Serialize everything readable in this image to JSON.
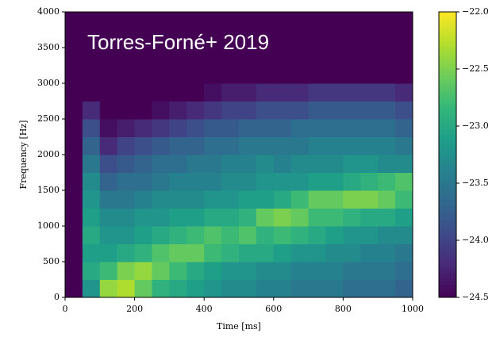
{
  "chart_data": {
    "type": "heatmap",
    "annotation": "Torres-Forné+ 2019",
    "xlabel": "Time [ms]",
    "ylabel": "Frequency [Hz]",
    "xlim": [
      0,
      1000
    ],
    "ylim": [
      0,
      4000
    ],
    "xticks": [
      0,
      200,
      400,
      600,
      800,
      1000
    ],
    "yticks": [
      0,
      500,
      1000,
      1500,
      2000,
      2500,
      3000,
      3500,
      4000
    ],
    "clim": [
      -24.5,
      -22.0
    ],
    "cticks": [
      {
        "value": -22.0,
        "label": "−22.0"
      },
      {
        "value": -22.5,
        "label": "−22.5"
      },
      {
        "value": -23.0,
        "label": "−23.0"
      },
      {
        "value": -23.5,
        "label": "−23.5"
      },
      {
        "value": -24.0,
        "label": "−24.0"
      },
      {
        "value": -24.5,
        "label": "−24.5"
      }
    ],
    "colormap": "viridis",
    "x_edges": [
      0,
      50,
      100,
      150,
      200,
      250,
      300,
      350,
      400,
      450,
      500,
      550,
      600,
      650,
      700,
      750,
      800,
      850,
      900,
      950,
      1000
    ],
    "y_edges": [
      0,
      250,
      500,
      750,
      1000,
      1250,
      1500,
      1750,
      2000,
      2250,
      2500,
      2750,
      3000,
      3250,
      3500,
      3750,
      4000
    ],
    "values": [
      [
        -24.5,
        -23.2,
        -22.4,
        -22.3,
        -22.6,
        -22.9,
        -23.0,
        -23.1,
        -23.2,
        -23.3,
        -23.3,
        -23.4,
        -23.4,
        -23.5,
        -23.5,
        -23.5,
        -23.6,
        -23.6,
        -23.6,
        -23.7
      ],
      [
        -24.5,
        -23.0,
        -22.8,
        -22.5,
        -22.4,
        -22.6,
        -22.8,
        -23.0,
        -23.1,
        -23.2,
        -23.2,
        -23.3,
        -23.3,
        -23.4,
        -23.4,
        -23.4,
        -23.5,
        -23.5,
        -23.5,
        -23.6
      ],
      [
        -24.5,
        -23.1,
        -23.1,
        -23.0,
        -22.9,
        -22.7,
        -22.6,
        -22.6,
        -22.8,
        -22.9,
        -23.0,
        -23.0,
        -23.1,
        -23.2,
        -23.2,
        -23.3,
        -23.3,
        -23.4,
        -23.4,
        -23.5
      ],
      [
        -24.5,
        -23.0,
        -23.2,
        -23.2,
        -23.1,
        -23.0,
        -22.9,
        -22.8,
        -22.7,
        -22.8,
        -22.7,
        -22.9,
        -22.8,
        -22.9,
        -23.0,
        -23.1,
        -23.2,
        -23.2,
        -23.3,
        -23.3
      ],
      [
        -24.5,
        -23.1,
        -23.3,
        -23.3,
        -23.2,
        -23.2,
        -23.1,
        -23.1,
        -23.0,
        -23.0,
        -22.9,
        -22.6,
        -22.5,
        -22.6,
        -22.8,
        -22.8,
        -22.9,
        -23.0,
        -23.0,
        -23.1
      ],
      [
        -24.5,
        -23.2,
        -23.5,
        -23.5,
        -23.4,
        -23.3,
        -23.3,
        -23.3,
        -23.2,
        -23.2,
        -23.1,
        -23.1,
        -23.0,
        -22.8,
        -22.6,
        -22.6,
        -22.5,
        -22.5,
        -22.6,
        -22.8
      ],
      [
        -24.5,
        -23.3,
        -23.7,
        -23.6,
        -23.6,
        -23.5,
        -23.4,
        -23.4,
        -23.4,
        -23.3,
        -23.3,
        -23.2,
        -23.2,
        -23.2,
        -23.1,
        -23.1,
        -23.0,
        -22.9,
        -22.8,
        -22.7
      ],
      [
        -24.5,
        -23.5,
        -23.9,
        -23.8,
        -23.7,
        -23.6,
        -23.6,
        -23.5,
        -23.5,
        -23.4,
        -23.4,
        -23.3,
        -23.4,
        -23.3,
        -23.3,
        -23.3,
        -23.2,
        -23.2,
        -23.3,
        -23.3
      ],
      [
        -24.5,
        -23.7,
        -24.2,
        -24.0,
        -23.9,
        -23.8,
        -23.7,
        -23.7,
        -23.6,
        -23.6,
        -23.5,
        -23.5,
        -23.5,
        -23.5,
        -23.4,
        -23.4,
        -23.4,
        -23.4,
        -23.4,
        -23.5
      ],
      [
        -24.5,
        -23.9,
        -24.4,
        -24.3,
        -24.2,
        -24.1,
        -24.0,
        -23.9,
        -23.8,
        -23.8,
        -23.7,
        -23.7,
        -23.7,
        -23.6,
        -23.6,
        -23.6,
        -23.6,
        -23.6,
        -23.6,
        -23.7
      ],
      [
        -24.5,
        -24.2,
        -24.5,
        -24.5,
        -24.5,
        -24.4,
        -24.3,
        -24.2,
        -24.1,
        -24.0,
        -24.0,
        -23.9,
        -23.9,
        -23.9,
        -23.8,
        -23.8,
        -23.8,
        -23.8,
        -23.8,
        -23.9
      ],
      [
        -24.5,
        -24.5,
        -24.5,
        -24.5,
        -24.5,
        -24.5,
        -24.5,
        -24.5,
        -24.4,
        -24.3,
        -24.3,
        -24.2,
        -24.2,
        -24.2,
        -24.1,
        -24.1,
        -24.1,
        -24.1,
        -24.1,
        -24.2
      ],
      [
        -24.5,
        -24.5,
        -24.5,
        -24.5,
        -24.5,
        -24.5,
        -24.5,
        -24.5,
        -24.5,
        -24.5,
        -24.5,
        -24.5,
        -24.5,
        -24.5,
        -24.5,
        -24.5,
        -24.5,
        -24.5,
        -24.5,
        -24.5
      ],
      [
        -24.5,
        -24.5,
        -24.5,
        -24.5,
        -24.5,
        -24.5,
        -24.5,
        -24.5,
        -24.5,
        -24.5,
        -24.5,
        -24.5,
        -24.5,
        -24.5,
        -24.5,
        -24.5,
        -24.5,
        -24.5,
        -24.5,
        -24.5
      ],
      [
        -24.5,
        -24.5,
        -24.5,
        -24.5,
        -24.5,
        -24.5,
        -24.5,
        -24.5,
        -24.5,
        -24.5,
        -24.5,
        -24.5,
        -24.5,
        -24.5,
        -24.5,
        -24.5,
        -24.5,
        -24.5,
        -24.5,
        -24.5
      ],
      [
        -24.5,
        -24.5,
        -24.5,
        -24.5,
        -24.5,
        -24.5,
        -24.5,
        -24.5,
        -24.5,
        -24.5,
        -24.5,
        -24.5,
        -24.5,
        -24.5,
        -24.5,
        -24.5,
        -24.5,
        -24.5,
        -24.5,
        -24.5
      ]
    ]
  }
}
